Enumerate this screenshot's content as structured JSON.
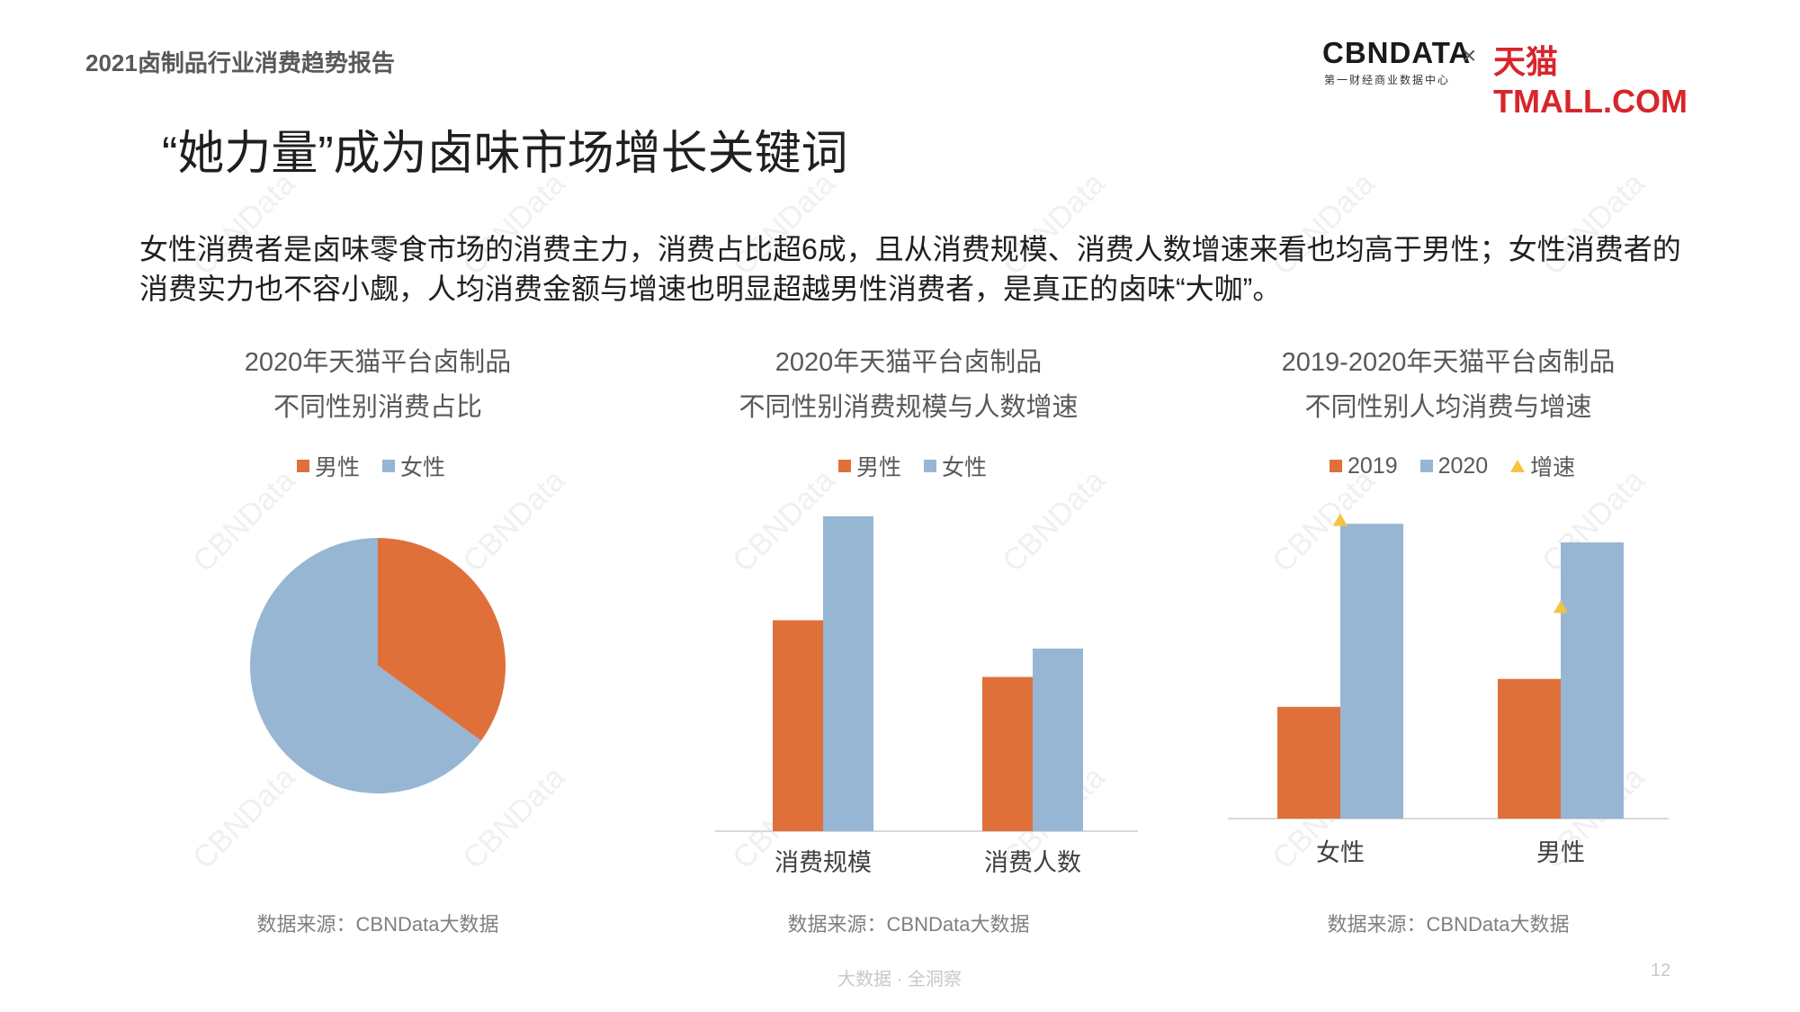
{
  "header": {
    "report_name": "2021卤制品行业消费趋势报告",
    "logo_cbn": "CBNDATA",
    "logo_cbn_sub": "第一财经商业数据中心",
    "logo_times": "×",
    "logo_tmall": "天猫TMALL.COM"
  },
  "main_title": "“她力量”成为卤味市场增长关键词",
  "summary": "女性消费者是卤味零食市场的消费主力，消费占比超6成，且从消费规模、消费人数增速来看也均高于男性；女性消费者的消费实力也不容小觑，人均消费金额与增速也明显超越男性消费者，是真正的卤味“大咖”。",
  "watermark": "CBNData",
  "colors": {
    "orange": "#e0703a",
    "blue": "#97b6d4",
    "yellow": "#f5c342",
    "axis": "#d9d9d9"
  },
  "chart_data": [
    {
      "type": "pie",
      "title_line1": "2020年天猫平台卤制品",
      "title_line2": "不同性别消费占比",
      "legend": [
        "男性",
        "女性"
      ],
      "slices": [
        {
          "name": "男性",
          "value": 35
        },
        {
          "name": "女性",
          "value": 65
        }
      ],
      "source": "数据来源：CBNData大数据"
    },
    {
      "type": "bar",
      "title_line1": "2020年天猫平台卤制品",
      "title_line2": "不同性别消费规模与人数增速",
      "legend": [
        "男性",
        "女性"
      ],
      "categories": [
        "消费规模",
        "消费人数"
      ],
      "series": [
        {
          "name": "男性",
          "values": [
            67,
            49
          ]
        },
        {
          "name": "女性",
          "values": [
            100,
            58
          ]
        }
      ],
      "ylim": [
        0,
        100
      ],
      "source": "数据来源：CBNData大数据"
    },
    {
      "type": "bar",
      "title_line1": "2019-2020年天猫平台卤制品",
      "title_line2": "不同性别人均消费与增速",
      "legend": [
        "2019",
        "2020",
        "增速"
      ],
      "categories": [
        "女性",
        "男性"
      ],
      "series": [
        {
          "name": "2019",
          "values": [
            36,
            45
          ]
        },
        {
          "name": "2020",
          "values": [
            95,
            89
          ]
        },
        {
          "name": "增速",
          "values": [
            96,
            68
          ]
        }
      ],
      "ylim": [
        0,
        100
      ],
      "source": "数据来源：CBNData大数据"
    }
  ],
  "footer": {
    "slogan": "大数据 · 全洞察",
    "page_number": "12"
  }
}
